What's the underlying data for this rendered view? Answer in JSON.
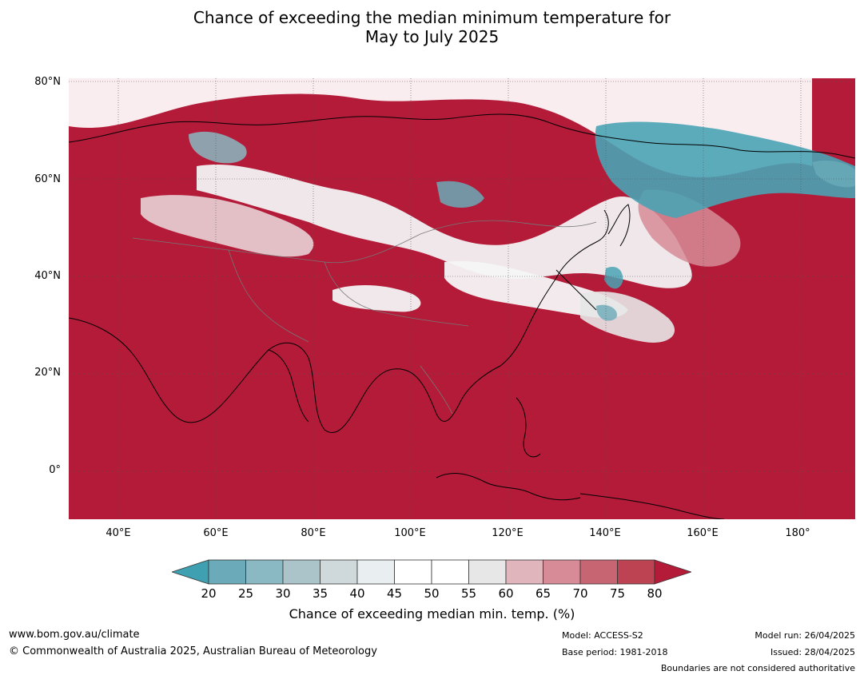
{
  "title": {
    "line1": "Chance of exceeding the median minimum temperature for",
    "line2": "May to July 2025"
  },
  "map": {
    "lat_labels": [
      "80°N",
      "60°N",
      "40°N",
      "20°N",
      "0°"
    ],
    "lon_labels": [
      "40°E",
      "60°E",
      "80°E",
      "100°E",
      "120°E",
      "140°E",
      "160°E",
      "180°"
    ],
    "colors": {
      "ocean_dominant": "#b31b39",
      "land_high": "#b31b39",
      "teal_low": "#4aa3b5",
      "neutral": "#ffffff"
    }
  },
  "colorbar": {
    "ticks": [
      "20",
      "25",
      "30",
      "35",
      "40",
      "45",
      "50",
      "55",
      "60",
      "65",
      "70",
      "75",
      "80"
    ],
    "colors": [
      "#3fa0b2",
      "#6aaab9",
      "#8ab8c3",
      "#aac4ca",
      "#cfd9dc",
      "#e9eff1",
      "#ffffff",
      "#ffffff",
      "#e7e7e7",
      "#e0b6bc",
      "#d68b97",
      "#c86572",
      "#bd4353",
      "#b31b39"
    ],
    "label": "Chance of exceeding median min. temp. (%)"
  },
  "footer": {
    "website": "www.bom.gov.au/climate",
    "copyright": "© Commonwealth of Australia 2025, Australian Bureau of Meteorology",
    "model": "Model: ACCESS-S2",
    "base_period": "Base period: 1981-2018",
    "model_run": "Model run: 26/04/2025",
    "issued": "Issued: 28/04/2025",
    "disclaimer": "Boundaries are not considered authoritative"
  }
}
